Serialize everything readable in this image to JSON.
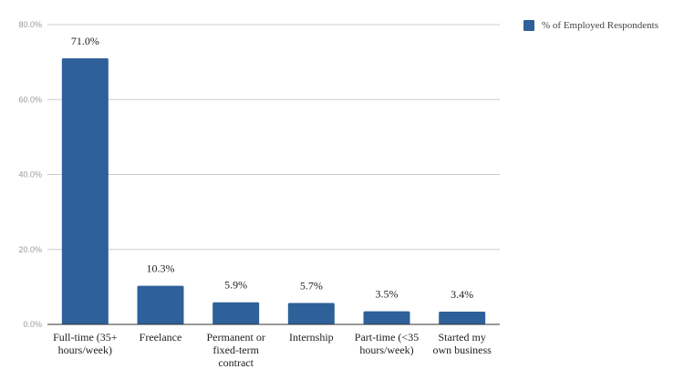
{
  "chart_data": {
    "type": "bar",
    "categories": [
      [
        "Full-time (35+",
        "hours/week)"
      ],
      [
        "Freelance"
      ],
      [
        "Permanent or",
        "fixed-term",
        "contract"
      ],
      [
        "Internship"
      ],
      [
        "Part-time (<35",
        "hours/week)"
      ],
      [
        "Started my",
        "own business"
      ]
    ],
    "series": [
      {
        "name": "% of Employed Respondents",
        "values": [
          71.0,
          10.3,
          5.9,
          5.7,
          3.5,
          3.4
        ],
        "labels": [
          "71.0%",
          "10.3%",
          "5.9%",
          "5.7%",
          "3.5%",
          "3.4%"
        ],
        "color": "#2e6199"
      }
    ],
    "yticks": [
      "0.0%",
      "20.0%",
      "40.0%",
      "60.0%",
      "80.0%"
    ],
    "ylim": [
      0,
      80
    ],
    "grid": true,
    "legend_position": "top-right"
  },
  "colors": {
    "bar": "#2e6199",
    "grid": "#cccccc",
    "axis": "#333333"
  }
}
